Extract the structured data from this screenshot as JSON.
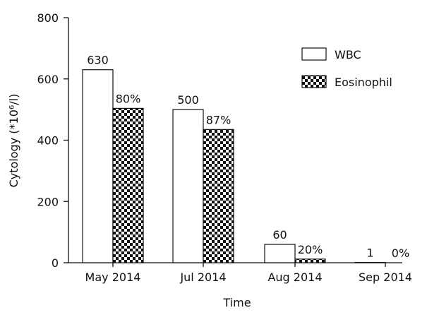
{
  "chart_data": {
    "type": "bar",
    "categories": [
      "May 2014",
      "Jul 2014",
      "Aug 2014",
      "Sep 2014"
    ],
    "series": [
      {
        "name": "WBC",
        "values": [
          630,
          500,
          60,
          1
        ],
        "labels": [
          "630",
          "500",
          "60",
          "1"
        ],
        "fill": "white"
      },
      {
        "name": "Eosinophil",
        "values": [
          504,
          435,
          12,
          0
        ],
        "labels": [
          "80%",
          "87%",
          "20%",
          "0%"
        ],
        "fill": "checkerboard"
      }
    ],
    "xlabel": "Time",
    "ylabel": "Cytology (*10⁶/l)",
    "ylim": [
      0,
      800
    ],
    "yticks": [
      "0",
      "200",
      "400",
      "600",
      "800"
    ],
    "grid": false,
    "legend_position": "top-right"
  },
  "colors": {
    "bar_stroke": "#111111",
    "bar_fill": "#ffffff",
    "checker_dark": "#111111",
    "checker_light": "#ffffff"
  }
}
